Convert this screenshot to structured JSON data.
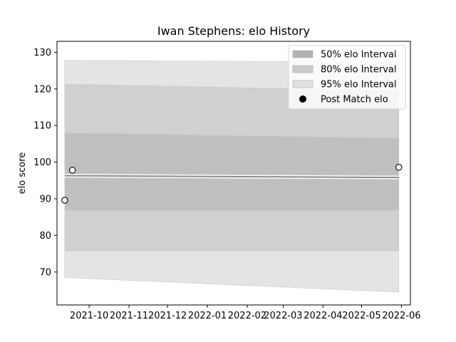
{
  "chart_data": {
    "type": "area",
    "title": "Iwan Stephens: elo History",
    "xlabel": "",
    "ylabel": "elo score",
    "xlim": [
      "2021-09-06",
      "2022-06-08"
    ],
    "ylim": [
      61,
      133
    ],
    "x_ticks": [
      "2021-10",
      "2021-11",
      "2021-12",
      "2022-01",
      "2022-02",
      "2022-03",
      "2022-04",
      "2022-05",
      "2022-06"
    ],
    "y_ticks": [
      70,
      80,
      90,
      100,
      110,
      120,
      130
    ],
    "x": [
      "2021-09-12",
      "2022-05-30"
    ],
    "mean": [
      96.3,
      95.8
    ],
    "intervals": [
      {
        "name": "95% elo Interval",
        "color": "#e4e4e4",
        "lower": [
          68.5,
          64.5
        ],
        "upper": [
          127.8,
          127.3
        ]
      },
      {
        "name": "80% elo Interval",
        "color": "#d0d0d0",
        "lower": [
          75.8,
          75.8
        ],
        "upper": [
          121.3,
          119.5
        ]
      },
      {
        "name": "50% elo Interval",
        "color": "#bfbfbf",
        "lower": [
          86.8,
          86.8
        ],
        "upper": [
          108.0,
          106.5
        ]
      }
    ],
    "points": {
      "name": "Post Match elo",
      "x": [
        "2021-09-12",
        "2021-09-18",
        "2022-05-30"
      ],
      "y": [
        89.6,
        97.8,
        98.6
      ]
    },
    "legend": {
      "position": "upper right",
      "entries": [
        {
          "label": "50% elo Interval",
          "color": "#b3b3b3",
          "kind": "patch"
        },
        {
          "label": "80% elo Interval",
          "color": "#cacaca",
          "kind": "patch"
        },
        {
          "label": "95% elo Interval",
          "color": "#e0e0e0",
          "kind": "patch"
        },
        {
          "label": "Post Match elo",
          "color": "#000000",
          "kind": "marker"
        }
      ]
    }
  }
}
